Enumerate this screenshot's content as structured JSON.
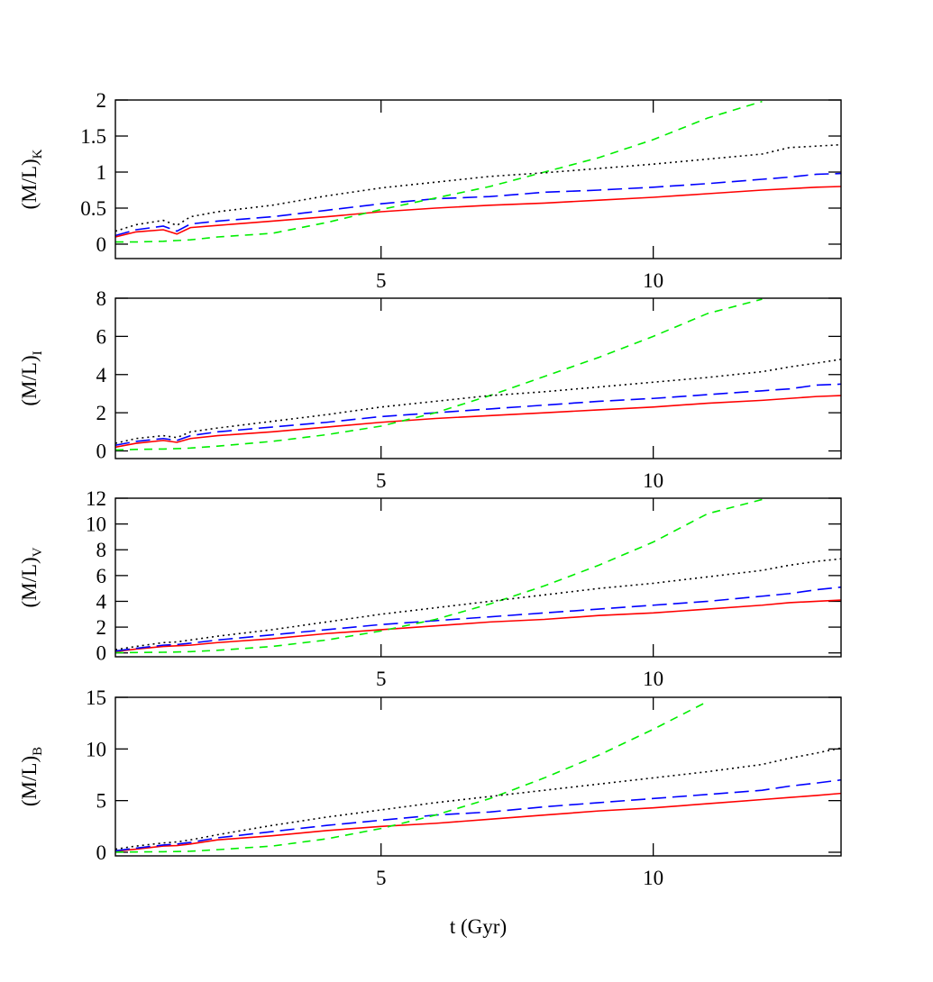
{
  "chart_data": [
    {
      "type": "line",
      "ylabel": "(M/L)",
      "ylabel_subscript": "K",
      "x": [
        0.12,
        0.5,
        1,
        1.25,
        1.5,
        2,
        3,
        4,
        5,
        6,
        7,
        8,
        9,
        10,
        11,
        12,
        12.5,
        13,
        13.45
      ],
      "xlim": [
        0.12,
        13.45
      ],
      "xticks": [
        5,
        10
      ],
      "ylim": [
        -0.2,
        2
      ],
      "yticks": [
        0,
        0.5,
        1,
        1.5,
        2
      ],
      "series": [
        {
          "color": "#ff0000",
          "style": "solid",
          "values": [
            0.1,
            0.17,
            0.2,
            0.14,
            0.23,
            0.26,
            0.32,
            0.38,
            0.45,
            0.5,
            0.54,
            0.57,
            0.61,
            0.65,
            0.7,
            0.75,
            0.77,
            0.79,
            0.8
          ]
        },
        {
          "color": "#0000ff",
          "style": "long-dash",
          "values": [
            0.12,
            0.2,
            0.25,
            0.18,
            0.28,
            0.32,
            0.38,
            0.47,
            0.56,
            0.63,
            0.66,
            0.72,
            0.75,
            0.79,
            0.84,
            0.9,
            0.93,
            0.97,
            0.98
          ]
        },
        {
          "color": "#00ee00",
          "style": "dashed",
          "values": [
            0.03,
            0.03,
            0.04,
            0.05,
            0.06,
            0.1,
            0.15,
            0.3,
            0.48,
            0.64,
            0.8,
            1.0,
            1.2,
            1.45,
            1.75,
            1.98,
            null,
            null,
            null
          ]
        },
        {
          "color": "#000000",
          "style": "dotted",
          "values": [
            0.18,
            0.27,
            0.33,
            0.26,
            0.38,
            0.45,
            0.54,
            0.67,
            0.78,
            0.86,
            0.94,
            0.99,
            1.05,
            1.11,
            1.18,
            1.25,
            1.34,
            1.36,
            1.38
          ]
        }
      ]
    },
    {
      "type": "line",
      "ylabel": "(M/L)",
      "ylabel_subscript": "I",
      "x": [
        0.12,
        0.5,
        1,
        1.25,
        1.5,
        2,
        3,
        4,
        5,
        6,
        7,
        8,
        9,
        10,
        11,
        12,
        12.5,
        13,
        13.45
      ],
      "xlim": [
        0.12,
        13.45
      ],
      "xticks": [
        5,
        10
      ],
      "ylim": [
        -0.4,
        8
      ],
      "yticks": [
        0,
        2,
        4,
        6,
        8
      ],
      "series": [
        {
          "color": "#ff0000",
          "style": "solid",
          "values": [
            0.2,
            0.4,
            0.55,
            0.45,
            0.65,
            0.8,
            1.0,
            1.25,
            1.5,
            1.7,
            1.85,
            2.0,
            2.15,
            2.3,
            2.5,
            2.65,
            2.75,
            2.85,
            2.9
          ]
        },
        {
          "color": "#0000ff",
          "style": "long-dash",
          "values": [
            0.3,
            0.5,
            0.65,
            0.55,
            0.8,
            1.0,
            1.25,
            1.5,
            1.8,
            2.0,
            2.2,
            2.4,
            2.6,
            2.75,
            2.95,
            3.15,
            3.25,
            3.45,
            3.5
          ]
        },
        {
          "color": "#00ee00",
          "style": "dashed",
          "values": [
            0.05,
            0.08,
            0.1,
            0.12,
            0.15,
            0.25,
            0.5,
            0.85,
            1.3,
            2.0,
            2.9,
            3.9,
            4.9,
            6.0,
            7.2,
            7.95,
            null,
            null,
            null
          ]
        },
        {
          "color": "#000000",
          "style": "dotted",
          "values": [
            0.4,
            0.65,
            0.8,
            0.7,
            1.0,
            1.2,
            1.55,
            1.9,
            2.3,
            2.6,
            2.9,
            3.1,
            3.35,
            3.6,
            3.85,
            4.15,
            4.4,
            4.6,
            4.8
          ]
        }
      ]
    },
    {
      "type": "line",
      "ylabel": "(M/L)",
      "ylabel_subscript": "V",
      "x": [
        0.12,
        0.5,
        1,
        1.25,
        1.5,
        2,
        3,
        4,
        5,
        6,
        7,
        8,
        9,
        10,
        11,
        12,
        12.5,
        13,
        13.45
      ],
      "xlim": [
        0.12,
        13.45
      ],
      "xticks": [
        5,
        10
      ],
      "ylim": [
        -0.3,
        12
      ],
      "yticks": [
        0,
        2,
        4,
        6,
        8,
        10,
        12
      ],
      "series": [
        {
          "color": "#ff0000",
          "style": "solid",
          "values": [
            0.1,
            0.3,
            0.5,
            0.55,
            0.6,
            0.8,
            1.1,
            1.5,
            1.8,
            2.1,
            2.4,
            2.6,
            2.9,
            3.1,
            3.4,
            3.7,
            3.9,
            4.0,
            4.1
          ]
        },
        {
          "color": "#0000ff",
          "style": "long-dash",
          "values": [
            0.15,
            0.35,
            0.6,
            0.65,
            0.75,
            1.0,
            1.4,
            1.8,
            2.2,
            2.5,
            2.8,
            3.1,
            3.4,
            3.7,
            4.0,
            4.4,
            4.6,
            4.9,
            5.1
          ]
        },
        {
          "color": "#00ee00",
          "style": "dashed",
          "values": [
            0.02,
            0.03,
            0.05,
            0.07,
            0.1,
            0.2,
            0.5,
            1.0,
            1.7,
            2.6,
            3.8,
            5.2,
            6.8,
            8.6,
            10.8,
            11.9,
            null,
            null,
            null
          ]
        },
        {
          "color": "#000000",
          "style": "dotted",
          "values": [
            0.25,
            0.5,
            0.8,
            0.85,
            1.0,
            1.3,
            1.8,
            2.4,
            3.0,
            3.5,
            4.0,
            4.5,
            5.0,
            5.4,
            5.9,
            6.4,
            6.8,
            7.1,
            7.3
          ]
        }
      ]
    },
    {
      "type": "line",
      "ylabel": "(M/L)",
      "ylabel_subscript": "B",
      "xlabel": "t (Gyr)",
      "x": [
        0.12,
        0.5,
        1,
        1.25,
        1.5,
        2,
        3,
        4,
        5,
        6,
        7,
        8,
        9,
        10,
        11,
        12,
        12.5,
        13,
        13.45
      ],
      "xlim": [
        0.12,
        13.45
      ],
      "xticks": [
        5,
        10
      ],
      "ylim": [
        -0.35,
        15
      ],
      "yticks": [
        0,
        5,
        10,
        15
      ],
      "series": [
        {
          "color": "#ff0000",
          "style": "solid",
          "values": [
            0.1,
            0.3,
            0.6,
            0.65,
            0.8,
            1.2,
            1.6,
            2.1,
            2.5,
            2.8,
            3.2,
            3.6,
            4.0,
            4.3,
            4.7,
            5.1,
            5.3,
            5.5,
            5.7
          ]
        },
        {
          "color": "#0000ff",
          "style": "long-dash",
          "values": [
            0.15,
            0.4,
            0.7,
            0.8,
            0.95,
            1.4,
            2.0,
            2.6,
            3.1,
            3.6,
            3.9,
            4.4,
            4.8,
            5.2,
            5.6,
            6.0,
            6.4,
            6.7,
            7.0
          ]
        },
        {
          "color": "#00ee00",
          "style": "dashed",
          "values": [
            0.02,
            0.03,
            0.05,
            0.07,
            0.1,
            0.25,
            0.6,
            1.3,
            2.3,
            3.6,
            5.2,
            7.2,
            9.4,
            11.9,
            14.6,
            null,
            null,
            null,
            null
          ]
        },
        {
          "color": "#000000",
          "style": "dotted",
          "values": [
            0.3,
            0.6,
            0.9,
            1.0,
            1.2,
            1.7,
            2.6,
            3.4,
            4.1,
            4.8,
            5.4,
            6.0,
            6.6,
            7.2,
            7.8,
            8.5,
            9.1,
            9.6,
            10.1
          ]
        }
      ]
    }
  ]
}
